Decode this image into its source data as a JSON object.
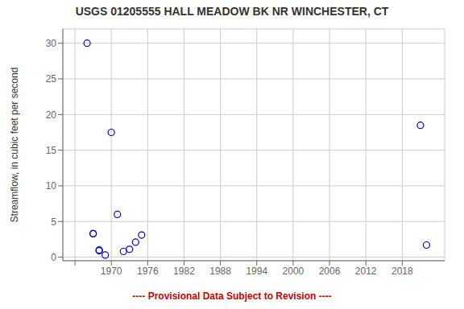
{
  "chart_data": {
    "type": "scatter",
    "title": "USGS 01205555 HALL MEADOW BK NR WINCHESTER, CT",
    "y_label": "Streamflow, in cubic feet per second",
    "x": [
      1966,
      1967,
      1967,
      1968,
      1968,
      1969,
      1970,
      1971,
      1972,
      1973,
      1974,
      1975,
      2021,
      2022
    ],
    "values": [
      30.0,
      3.3,
      3.3,
      0.9,
      1.0,
      0.3,
      17.5,
      6.0,
      0.8,
      1.1,
      2.1,
      3.1,
      18.5,
      1.7
    ],
    "color": "#0000cc",
    "marker": "circle",
    "xlim": [
      1962,
      2025
    ],
    "ylim": [
      -0.5,
      32
    ],
    "xticks": [
      {
        "value": 1964,
        "label": null
      },
      1970,
      1976,
      1982,
      1988,
      1994,
      2000,
      2006,
      2012,
      2018
    ],
    "yticks": [
      0,
      5,
      10,
      15,
      20,
      25,
      30
    ],
    "grid": true,
    "annotations": [
      {
        "text": "---- Provisional Data Subject to Revision ----",
        "color": "#cc0000"
      }
    ]
  }
}
